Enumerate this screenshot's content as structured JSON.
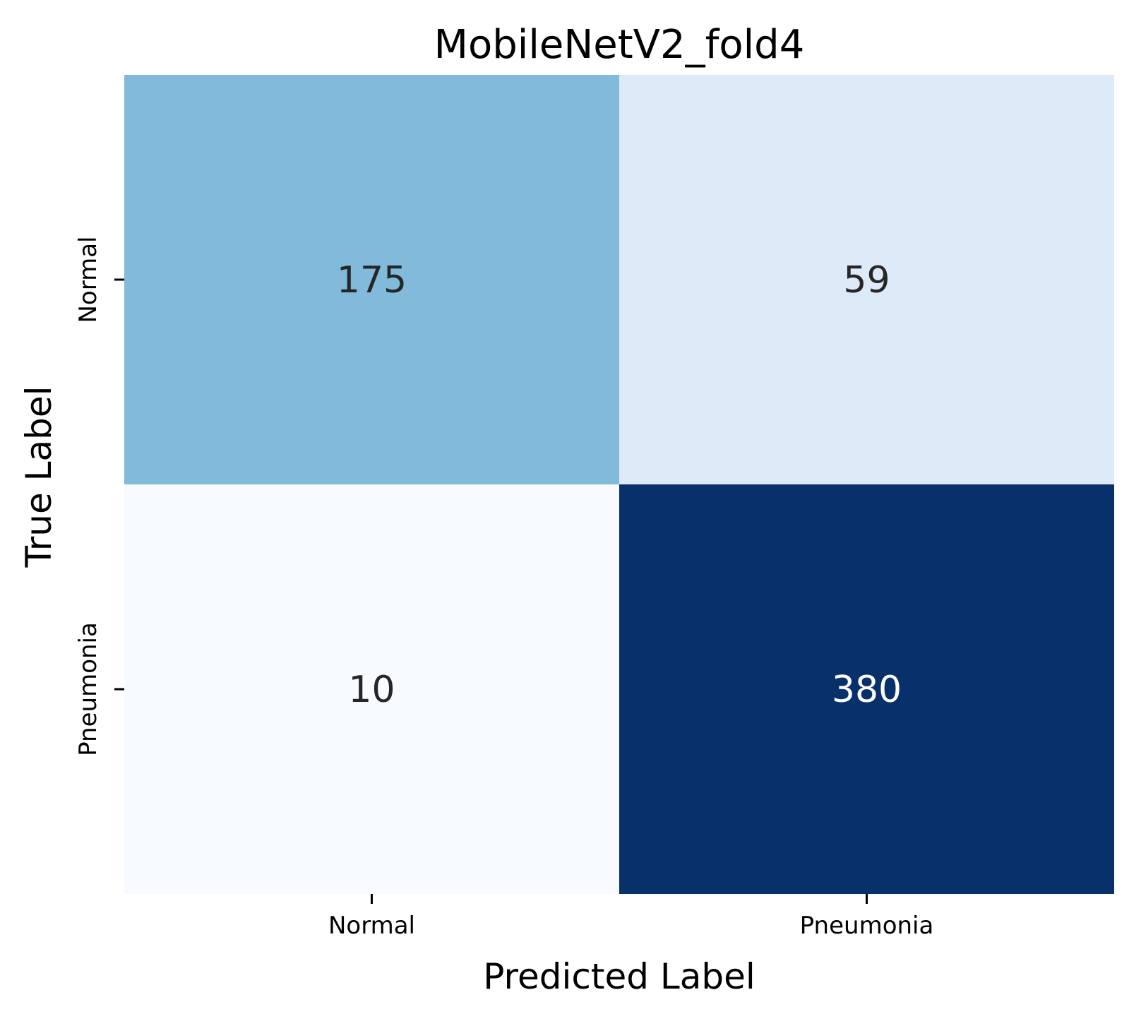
{
  "chart_data": {
    "type": "heatmap",
    "title": "MobileNetV2_fold4",
    "xlabel": "Predicted Label",
    "ylabel": "True Label",
    "x_categories": [
      "Normal",
      "Pneumonia"
    ],
    "y_categories": [
      "Normal",
      "Pneumonia"
    ],
    "values": [
      [
        175,
        59
      ],
      [
        10,
        380
      ]
    ],
    "colormap": "Blues",
    "colorbar": false,
    "annotations": true,
    "grid": false,
    "value_range": [
      10,
      380
    ],
    "colors": {
      "low": "#f7fbff",
      "high": "#08306b",
      "text_dark": "#262626",
      "text_light": "#ffffff"
    }
  }
}
